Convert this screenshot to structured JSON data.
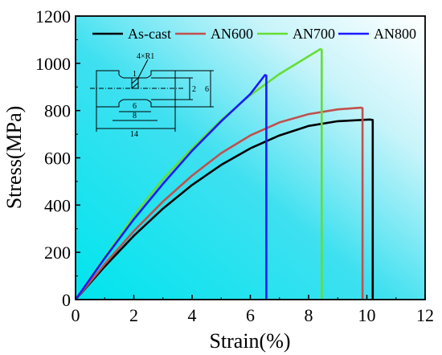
{
  "chart_data": {
    "type": "line",
    "xlabel": "Strain(%)",
    "ylabel": "Stress(MPa)",
    "xlim": [
      0,
      12
    ],
    "ylim": [
      0,
      1200
    ],
    "xticks": [
      0,
      2,
      4,
      6,
      8,
      10,
      12
    ],
    "yticks": [
      0,
      200,
      400,
      600,
      800,
      1000,
      1200
    ],
    "background": "cyan gradient",
    "legend_position": "top",
    "series": [
      {
        "name": "As-cast",
        "color": "#000000",
        "x": [
          0,
          1,
          2,
          3,
          4,
          5,
          6,
          7,
          8,
          9,
          10.1,
          10.2,
          10.2
        ],
        "y": [
          0,
          140,
          270,
          385,
          485,
          570,
          640,
          695,
          735,
          755,
          762,
          760,
          0
        ]
      },
      {
        "name": "AN600",
        "color": "#c0504d",
        "x": [
          0,
          1,
          2,
          3,
          4,
          5,
          6,
          7,
          8,
          9,
          9.8,
          9.85,
          9.85
        ],
        "y": [
          0,
          150,
          290,
          415,
          525,
          620,
          695,
          750,
          785,
          805,
          812,
          810,
          0
        ]
      },
      {
        "name": "AN700",
        "color": "#66dd33",
        "x": [
          0,
          1,
          2,
          3,
          4,
          5,
          6,
          7,
          8,
          8.4,
          8.45,
          8.45
        ],
        "y": [
          0,
          180,
          355,
          510,
          640,
          760,
          865,
          955,
          1030,
          1060,
          1058,
          0
        ]
      },
      {
        "name": "AN800",
        "color": "#1a1aff",
        "x": [
          0,
          1,
          2,
          3,
          4,
          5,
          6,
          6.5,
          6.55,
          6.55
        ],
        "y": [
          0,
          175,
          340,
          490,
          630,
          755,
          870,
          950,
          948,
          0
        ]
      }
    ],
    "inset_diagram": {
      "description_labels": [
        "4×R1",
        "1",
        "2",
        "6",
        "6",
        "8",
        "14"
      ]
    }
  }
}
